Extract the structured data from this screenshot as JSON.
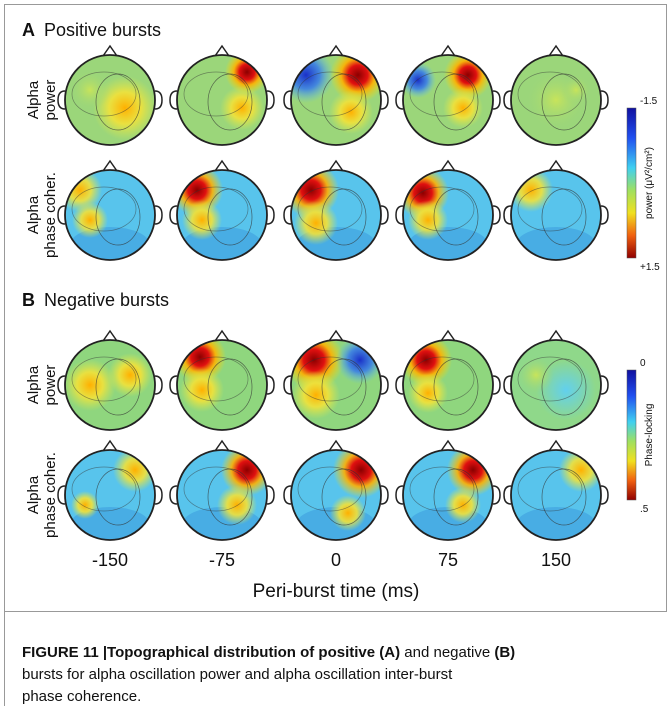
{
  "panels": [
    {
      "letter": "A",
      "title": "Positive bursts",
      "rows": [
        [
          "Alpha",
          "power"
        ],
        [
          "Alpha",
          "phase coher."
        ]
      ],
      "colorbar": {
        "top": "-1.5",
        "label": "power (μV²/cm²)",
        "bottom": "+1.5"
      }
    },
    {
      "letter": "B",
      "title": "Negative bursts",
      "rows": [
        [
          "Alpha",
          "power"
        ],
        [
          "Alpha",
          "phase coher."
        ]
      ],
      "colorbar": {
        "top": "0",
        "label": "Phase-locking",
        "bottom": ".5"
      }
    }
  ],
  "times": [
    "-150",
    "-75",
    "0",
    "75",
    "150"
  ],
  "x_label": "Peri-burst time (ms)",
  "caption": {
    "lines": [
      [
        {
          "text": "FIGURE 11 |Topographical distribution of positive ",
          "bold": true
        },
        {
          "text": "(A)",
          "bold": true
        },
        {
          "text": " and negative ",
          "bold": false
        },
        {
          "text": "(B)",
          "bold": true
        }
      ],
      [
        {
          "text": "bursts for alpha oscillation power and alpha oscillation inter-burst",
          "bold": false
        }
      ],
      [
        {
          "text": "phase coherence.",
          "bold": false
        }
      ]
    ]
  }
}
